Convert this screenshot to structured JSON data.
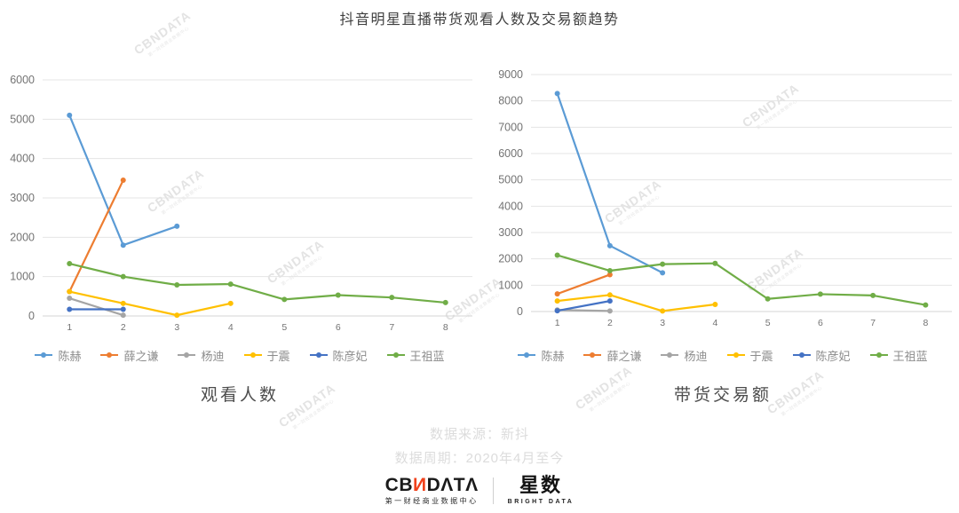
{
  "title": "抖音明星直播带货观看人数及交易额趋势",
  "chart_data": [
    {
      "type": "line",
      "title": "观看人数",
      "categories": [
        "1",
        "2",
        "3",
        "4",
        "5",
        "6",
        "7",
        "8"
      ],
      "ylim": [
        0,
        6000
      ],
      "ytick_step": 1000,
      "grid": true,
      "legend_position": "bottom",
      "series": [
        {
          "name": "陈赫",
          "color": "#5B9BD5",
          "values": [
            5100,
            1800,
            2280,
            null,
            null,
            null,
            null,
            null
          ]
        },
        {
          "name": "薛之谦",
          "color": "#ED7D31",
          "values": [
            620,
            3450,
            null,
            null,
            null,
            null,
            null,
            null
          ]
        },
        {
          "name": "杨迪",
          "color": "#A5A5A5",
          "values": [
            450,
            20,
            null,
            null,
            null,
            null,
            null,
            null
          ]
        },
        {
          "name": "于震",
          "color": "#FFC000",
          "values": [
            620,
            320,
            20,
            320,
            null,
            null,
            null,
            null
          ]
        },
        {
          "name": "陈彦妃",
          "color": "#4472C4",
          "values": [
            170,
            170,
            null,
            null,
            null,
            null,
            null,
            null
          ]
        },
        {
          "name": "王祖蓝",
          "color": "#70AD47",
          "values": [
            1330,
            1000,
            790,
            810,
            420,
            530,
            470,
            340
          ]
        }
      ]
    },
    {
      "type": "line",
      "title": "带货交易额",
      "categories": [
        "1",
        "2",
        "3",
        "4",
        "5",
        "6",
        "7",
        "8"
      ],
      "ylim": [
        0,
        9000
      ],
      "ytick_step": 1000,
      "grid": true,
      "legend_position": "bottom",
      "series": [
        {
          "name": "陈赫",
          "color": "#5B9BD5",
          "values": [
            8280,
            2500,
            1470,
            null,
            null,
            null,
            null,
            null
          ]
        },
        {
          "name": "薛之谦",
          "color": "#ED7D31",
          "values": [
            670,
            1400,
            null,
            null,
            null,
            null,
            null,
            null
          ]
        },
        {
          "name": "杨迪",
          "color": "#A5A5A5",
          "values": [
            60,
            20,
            null,
            null,
            null,
            null,
            null,
            null
          ]
        },
        {
          "name": "于震",
          "color": "#FFC000",
          "values": [
            400,
            630,
            20,
            270,
            null,
            null,
            null,
            null
          ]
        },
        {
          "name": "陈彦妃",
          "color": "#4472C4",
          "values": [
            30,
            400,
            null,
            null,
            null,
            null,
            null,
            null
          ]
        },
        {
          "name": "王祖蓝",
          "color": "#70AD47",
          "values": [
            2140,
            1550,
            1800,
            1830,
            480,
            660,
            610,
            250
          ]
        }
      ]
    }
  ],
  "footer": {
    "source": "数据来源：新抖",
    "period": "数据周期：2020年4月至今"
  },
  "watermark": {
    "text": "CBNDATA",
    "subtext": "第一财经商业数据中心"
  },
  "logos": {
    "cbn_prefix": "CB",
    "cbn_n": "И",
    "cbn_suffix": "DΛTΛ",
    "cbn_sub": "第一财经商业数据中心",
    "xingshu": "星数",
    "xingshu_sub": "BRIGHT DATA"
  },
  "colors": {
    "grid": "#e4e4e4",
    "axis": "#d4d4d4",
    "tick_label": "#737373",
    "accent_orange": "#f0421c"
  }
}
